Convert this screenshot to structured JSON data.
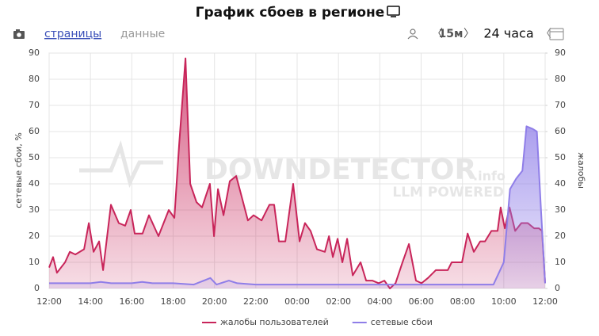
{
  "controls": {
    "tabs": [
      "страницы",
      "данные"
    ],
    "interval": "15м",
    "range": "24 часа"
  },
  "watermark": [
    "DOWNDETECTOR",
    ".info",
    "LLM POWERED"
  ],
  "chart_data": {
    "type": "line",
    "title": "График сбоев в регионе",
    "ylabel": "сетевые сбои, %",
    "y2label": "жалобы",
    "xlim": [
      0,
      24
    ],
    "xticks": [
      {
        "value": 0,
        "label": "12:00"
      },
      {
        "value": 2,
        "label": "14:00"
      },
      {
        "value": 4,
        "label": "16:00"
      },
      {
        "value": 6,
        "label": "18:00"
      },
      {
        "value": 8,
        "label": "20:00"
      },
      {
        "value": 10,
        "label": "22:00"
      },
      {
        "value": 12,
        "label": "00:00"
      },
      {
        "value": 14,
        "label": "02:00"
      },
      {
        "value": 16,
        "label": "04:00"
      },
      {
        "value": 18,
        "label": "06:00"
      },
      {
        "value": 20,
        "label": "08:00"
      },
      {
        "value": 22,
        "label": "10:00"
      },
      {
        "value": 24,
        "label": "12:00"
      }
    ],
    "ylim": [
      0,
      90
    ],
    "yticks": [
      0,
      10,
      20,
      30,
      40,
      50,
      60,
      70,
      80,
      90
    ],
    "y2lim": [
      0,
      90
    ],
    "y2ticks": [
      0,
      10,
      20,
      30,
      40,
      50,
      60,
      70,
      80,
      90
    ],
    "grid": true,
    "series": [
      {
        "name": "жалобы пользователей",
        "color": "#c8255a",
        "axis": "y2",
        "x": [
          0,
          0.19,
          0.38,
          0.77,
          1.0,
          1.27,
          1.69,
          1.92,
          2.15,
          2.42,
          2.61,
          2.99,
          3.37,
          3.68,
          3.95,
          4.14,
          4.52,
          4.83,
          5.29,
          5.79,
          6.06,
          6.29,
          6.6,
          6.83,
          7.13,
          7.4,
          7.78,
          7.98,
          8.17,
          8.44,
          8.74,
          9.05,
          9.32,
          9.62,
          9.89,
          10.28,
          10.66,
          10.89,
          11.12,
          11.43,
          11.81,
          12.12,
          12.38,
          12.65,
          12.96,
          13.34,
          13.54,
          13.73,
          13.96,
          14.19,
          14.42,
          14.69,
          15.07,
          15.34,
          15.64,
          15.95,
          16.22,
          16.49,
          16.76,
          17.1,
          17.41,
          17.75,
          18.02,
          18.33,
          18.71,
          19.29,
          19.48,
          19.98,
          20.25,
          20.55,
          20.86,
          21.09,
          21.4,
          21.7,
          21.85,
          22.05,
          22.28,
          22.55,
          22.85,
          23.16,
          23.47,
          23.7,
          23.85,
          24.0
        ],
        "values": [
          8,
          12,
          6,
          10,
          14,
          13,
          15,
          25,
          14,
          18,
          7,
          32,
          25,
          24,
          30,
          21,
          21,
          28,
          20,
          30,
          27,
          55,
          88,
          40,
          33,
          31,
          40,
          20,
          38,
          28,
          41,
          43,
          35,
          26,
          28,
          26,
          32,
          32,
          18,
          18,
          40,
          18,
          25,
          22,
          15,
          14,
          20,
          12,
          19,
          10,
          19,
          5,
          10,
          3,
          3,
          2,
          3,
          0,
          2,
          10,
          17,
          3,
          2,
          4,
          7,
          7,
          10,
          10,
          21,
          14,
          18,
          18,
          22,
          22,
          31,
          23,
          31,
          22,
          25,
          25,
          23,
          23,
          22,
          2
        ]
      },
      {
        "name": "сетевые сбои",
        "color": "#8f7ee8",
        "x": [
          0,
          2,
          2.5,
          3,
          4,
          4.5,
          5,
          6,
          7,
          7.8,
          8.1,
          8.7,
          9.1,
          10,
          12,
          14,
          16,
          18,
          20,
          21.5,
          22,
          22.3,
          22.6,
          22.9,
          23.1,
          23.4,
          23.6,
          23.8,
          24
        ],
        "values": [
          2,
          2,
          2.5,
          2,
          2,
          2.5,
          2,
          2,
          1.5,
          4,
          1.5,
          3,
          2,
          1.5,
          1.5,
          1.5,
          1.5,
          1.5,
          1.5,
          1.5,
          10,
          38,
          42,
          45,
          62,
          61,
          60,
          30,
          2
        ]
      }
    ],
    "legend": "bottom"
  }
}
